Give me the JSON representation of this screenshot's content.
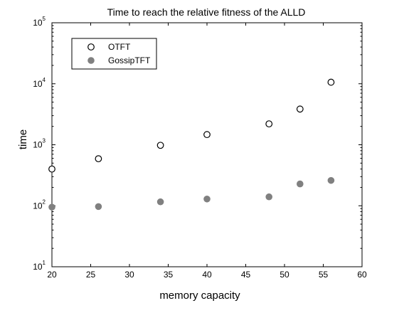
{
  "chart_data": {
    "type": "scatter",
    "title": "Time to reach the relative fitness of the ALLD",
    "xlabel": "memory capacity",
    "ylabel": "time",
    "xlim": [
      20,
      60
    ],
    "ylim": [
      10,
      100000
    ],
    "yscale": "log",
    "grid": false,
    "legend_position": "top-left",
    "x_ticks": [
      20,
      25,
      30,
      35,
      40,
      45,
      50,
      55,
      60
    ],
    "y_ticks": [
      {
        "base": "10",
        "exp": "1",
        "value": 10
      },
      {
        "base": "10",
        "exp": "2",
        "value": 100
      },
      {
        "base": "10",
        "exp": "3",
        "value": 1000
      },
      {
        "base": "10",
        "exp": "4",
        "value": 10000
      },
      {
        "base": "10",
        "exp": "5",
        "value": 100000
      }
    ],
    "series": [
      {
        "name": "OTFT",
        "marker": "open-circle",
        "color": "#000000",
        "points": [
          {
            "x": 20,
            "y": 400
          },
          {
            "x": 26,
            "y": 590
          },
          {
            "x": 34,
            "y": 980
          },
          {
            "x": 40,
            "y": 1470
          },
          {
            "x": 48,
            "y": 2200
          },
          {
            "x": 52,
            "y": 3850
          },
          {
            "x": 56,
            "y": 10600
          }
        ]
      },
      {
        "name": "GossipTFT",
        "marker": "filled-circle",
        "color": "#808080",
        "points": [
          {
            "x": 20,
            "y": 95
          },
          {
            "x": 26,
            "y": 97
          },
          {
            "x": 34,
            "y": 116
          },
          {
            "x": 40,
            "y": 129
          },
          {
            "x": 48,
            "y": 140
          },
          {
            "x": 52,
            "y": 228
          },
          {
            "x": 56,
            "y": 260
          }
        ]
      }
    ]
  }
}
